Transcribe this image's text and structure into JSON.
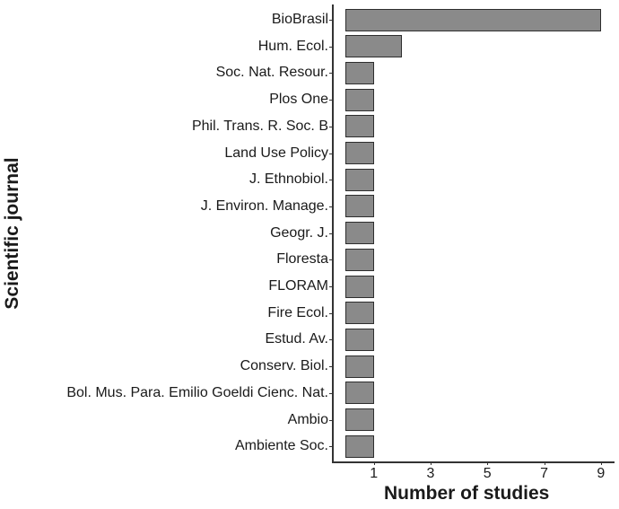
{
  "chart_data": {
    "type": "bar",
    "orientation": "horizontal",
    "title": "",
    "xlabel": "Number of studies",
    "ylabel": "Scientific journal",
    "categories": [
      "BioBrasil",
      "Hum. Ecol.",
      "Soc. Nat. Resour.",
      "Plos One",
      "Phil. Trans. R. Soc. B",
      "Land Use Policy",
      "J. Ethnobiol.",
      "J. Environ. Manage.",
      "Geogr. J.",
      "Floresta",
      "FLORAM",
      "Fire Ecol.",
      "Estud. Av.",
      "Conserv. Biol.",
      "Bol. Mus. Para. Emilio Goeldi Cienc. Nat.",
      "Ambio",
      "Ambiente Soc."
    ],
    "values": [
      9,
      2,
      1,
      1,
      1,
      1,
      1,
      1,
      1,
      1,
      1,
      1,
      1,
      1,
      1,
      1,
      1
    ],
    "xticks": [
      "1",
      "3",
      "5",
      "7",
      "9"
    ],
    "xlim": [
      0,
      9.5
    ],
    "grid": false,
    "legend": null,
    "bar_color": "#8a8a8a",
    "bar_border": "#2e2e2e"
  }
}
